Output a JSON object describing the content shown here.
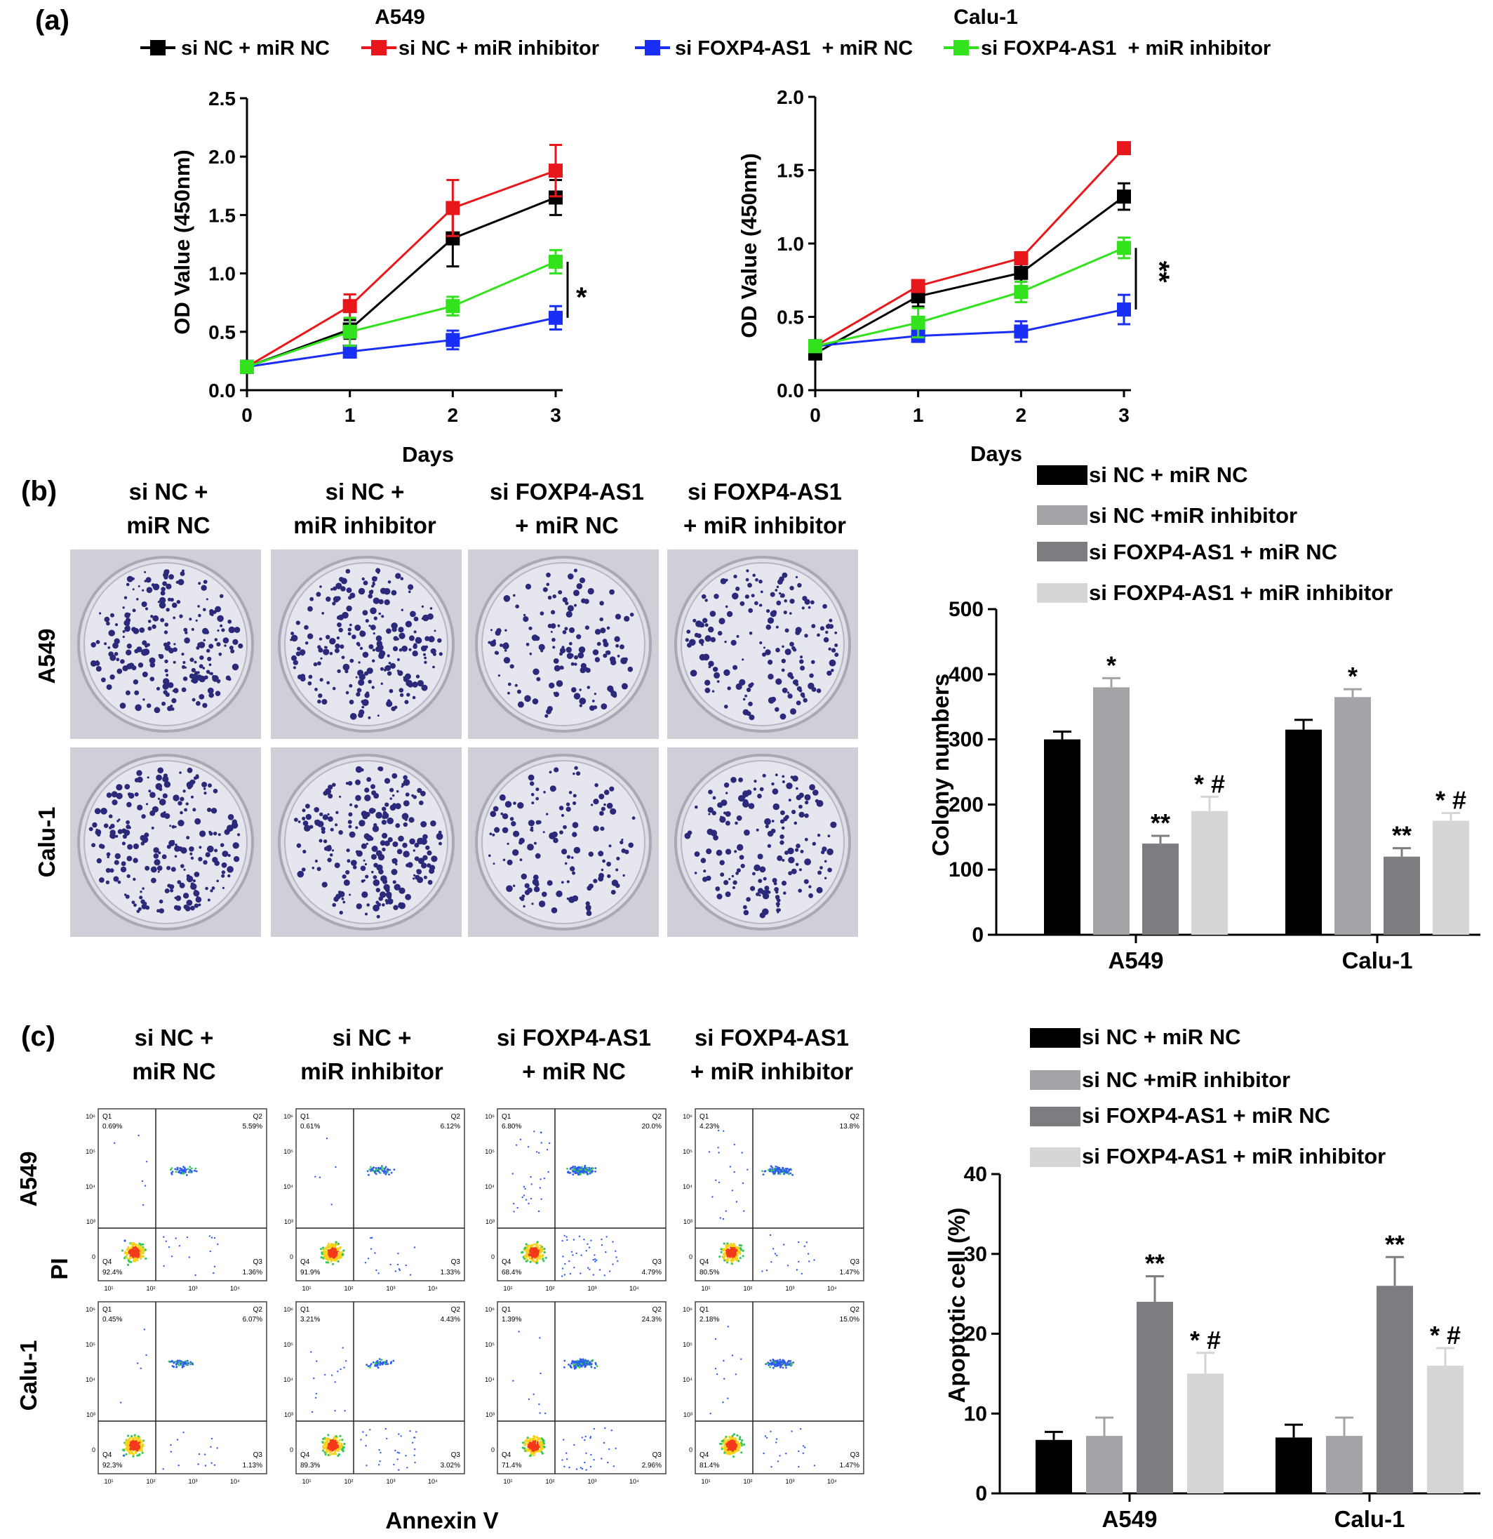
{
  "panels": [
    {
      "label": "(a)"
    },
    {
      "label": "(b)"
    },
    {
      "label": "(c)"
    }
  ],
  "colors": {
    "black": "#000000",
    "red": "#e8171b",
    "blue": "#1a2ff5",
    "green": "#32e21c",
    "bar1": "#000000",
    "bar2": "#a3a4a8",
    "bar3": "#7c7d80",
    "bar4": "#d6d6d7",
    "plate_bg": "#c8c8d0",
    "colony": "#2b2a7a"
  },
  "legend_a": [
    {
      "name": "si NC + miR NC",
      "color": "#000000"
    },
    {
      "name": "si NC + miR inhibitor",
      "color": "#e8171b"
    },
    {
      "name": "si FOXP4-AS1  + miR NC",
      "color": "#1a2ff5"
    },
    {
      "name": "si FOXP4-AS1  + miR inhibitor",
      "color": "#32e21c"
    }
  ],
  "legend_bars": [
    {
      "name": "si NC + miR NC",
      "color": "#000000"
    },
    {
      "name": "si NC +miR inhibitor",
      "color": "#a3a4a8"
    },
    {
      "name": "si FOXP4-AS1 + miR NC",
      "color": "#7c7d80"
    },
    {
      "name": "si FOXP4-AS1 + miR inhibitor",
      "color": "#d6d6d7"
    }
  ],
  "group_headers": [
    [
      "si NC +",
      "miR NC"
    ],
    [
      "si NC +",
      "miR inhibitor"
    ],
    [
      "si FOXP4-AS1",
      "+ miR NC"
    ],
    [
      "si FOXP4-AS1",
      "+ miR inhibitor"
    ]
  ],
  "row_labels": [
    "A549",
    "Calu-1"
  ],
  "flow": {
    "ylabel": "PI",
    "xlabel": "Annexin V",
    "quadrant_labels": [
      "Q1",
      "Q2",
      "Q3",
      "Q4"
    ],
    "axis_ticks": [
      "10¹",
      "10²",
      "10³",
      "10⁴"
    ],
    "y_ticks": [
      "10⁶",
      "10⁵",
      "10⁴",
      "10³",
      "0"
    ],
    "plots": [
      [
        {
          "q1": "0.69%",
          "q2": "5.59%",
          "q3": "1.36%",
          "q4": "92.4%"
        },
        {
          "q1": "0.61%",
          "q2": "6.12%",
          "q3": "1.33%",
          "q4": "91.9%"
        },
        {
          "q1": "6.80%",
          "q2": "20.0%",
          "q3": "4.79%",
          "q4": "68.4%"
        },
        {
          "q1": "4.23%",
          "q2": "13.8%",
          "q3": "1.47%",
          "q4": "80.5%"
        }
      ],
      [
        {
          "q1": "0.45%",
          "q2": "6.07%",
          "q3": "1.13%",
          "q4": "92.3%"
        },
        {
          "q1": "3.21%",
          "q2": "4.43%",
          "q3": "3.02%",
          "q4": "89.3%"
        },
        {
          "q1": "1.39%",
          "q2": "24.3%",
          "q3": "2.96%",
          "q4": "71.4%"
        },
        {
          "q1": "2.18%",
          "q2": "15.0%",
          "q3": "1.47%",
          "q4": "81.4%"
        }
      ]
    ]
  },
  "chart_data": [
    {
      "type": "line",
      "title": "A549",
      "xlabel": "Days",
      "ylabel": "OD Value (450nm)",
      "x": [
        0,
        1,
        2,
        3
      ],
      "ylim": [
        0,
        2.5
      ],
      "yticks": [
        "0.0",
        "0.5",
        "1.0",
        "1.5",
        "2.0",
        "2.5"
      ],
      "series": [
        {
          "name": "si NC + miR NC",
          "color": "#000000",
          "values": [
            0.2,
            0.52,
            1.3,
            1.65
          ],
          "errors": [
            0.03,
            0.08,
            0.24,
            0.15
          ]
        },
        {
          "name": "si NC + miR inhibitor",
          "color": "#e8171b",
          "values": [
            0.2,
            0.72,
            1.56,
            1.88
          ],
          "errors": [
            0.03,
            0.1,
            0.24,
            0.22
          ]
        },
        {
          "name": "si FOXP4-AS1  + miR NC",
          "color": "#1a2ff5",
          "values": [
            0.2,
            0.33,
            0.43,
            0.62
          ],
          "errors": [
            0.03,
            0.04,
            0.08,
            0.1
          ]
        },
        {
          "name": "si FOXP4-AS1  + miR inhibitor",
          "color": "#32e21c",
          "values": [
            0.2,
            0.5,
            0.72,
            1.1
          ],
          "errors": [
            0.03,
            0.12,
            0.08,
            0.1
          ]
        }
      ],
      "annotation": "*"
    },
    {
      "type": "line",
      "title": "Calu-1",
      "xlabel": "Days",
      "ylabel": "OD Value (450nm)",
      "x": [
        0,
        1,
        2,
        3
      ],
      "ylim": [
        0,
        2.0
      ],
      "yticks": [
        "0.0",
        "0.5",
        "1.0",
        "1.5",
        "2.0"
      ],
      "series": [
        {
          "name": "si NC + miR NC",
          "color": "#000000",
          "values": [
            0.25,
            0.64,
            0.8,
            1.32
          ],
          "errors": [
            0.03,
            0.07,
            0.06,
            0.09
          ]
        },
        {
          "name": "si NC + miR inhibitor",
          "color": "#e8171b",
          "values": [
            0.3,
            0.71,
            0.9,
            1.65
          ],
          "errors": [
            0.03,
            0.04,
            0.04,
            0.04
          ]
        },
        {
          "name": "si FOXP4-AS1  + miR NC",
          "color": "#1a2ff5",
          "values": [
            0.3,
            0.37,
            0.4,
            0.55
          ],
          "errors": [
            0.03,
            0.04,
            0.07,
            0.1
          ]
        },
        {
          "name": "si FOXP4-AS1  + miR inhibitor",
          "color": "#32e21c",
          "values": [
            0.3,
            0.46,
            0.67,
            0.97
          ],
          "errors": [
            0.03,
            0.1,
            0.07,
            0.07
          ]
        }
      ],
      "annotation": "**"
    },
    {
      "type": "bar",
      "ylabel": "Colony numbers",
      "categories": [
        "A549",
        "Calu-1"
      ],
      "ylim": [
        0,
        500
      ],
      "yticks": [
        "0",
        "100",
        "200",
        "300",
        "400",
        "500"
      ],
      "series": [
        {
          "name": "si NC + miR NC",
          "values": [
            300,
            315
          ],
          "errors": [
            12,
            15
          ],
          "labels": [
            "",
            ""
          ]
        },
        {
          "name": "si NC +miR inhibitor",
          "values": [
            380,
            365
          ],
          "errors": [
            14,
            12
          ],
          "labels": [
            "*",
            "*"
          ]
        },
        {
          "name": "si FOXP4-AS1 + miR NC",
          "values": [
            140,
            120
          ],
          "errors": [
            12,
            13
          ],
          "labels": [
            "**",
            "**"
          ]
        },
        {
          "name": "si FOXP4-AS1 + miR inhibitor",
          "values": [
            190,
            175
          ],
          "errors": [
            22,
            12
          ],
          "labels": [
            "* #",
            "* #"
          ]
        }
      ]
    },
    {
      "type": "bar",
      "ylabel": "Apoptotic cell (%)",
      "categories": [
        "A549",
        "Calu-1"
      ],
      "ylim": [
        0,
        40
      ],
      "yticks": [
        "0",
        "10",
        "20",
        "30",
        "40"
      ],
      "series": [
        {
          "name": "si NC + miR NC",
          "values": [
            6.7,
            7.0
          ],
          "errors": [
            1.0,
            1.6
          ],
          "labels": [
            "",
            ""
          ]
        },
        {
          "name": "si NC +miR inhibitor",
          "values": [
            7.2,
            7.2
          ],
          "errors": [
            2.3,
            2.3
          ],
          "labels": [
            "",
            ""
          ]
        },
        {
          "name": "si FOXP4-AS1 + miR NC",
          "values": [
            24.0,
            26.0
          ],
          "errors": [
            3.2,
            3.6
          ],
          "labels": [
            "**",
            "**"
          ]
        },
        {
          "name": "si FOXP4-AS1 + miR inhibitor",
          "values": [
            15.0,
            16.0
          ],
          "errors": [
            2.6,
            2.2
          ],
          "labels": [
            "* #",
            "* #"
          ]
        }
      ]
    }
  ]
}
